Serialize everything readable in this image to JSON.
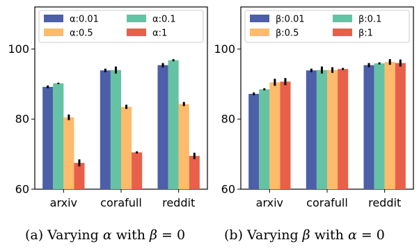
{
  "colors": [
    "#4c5fa8",
    "#66c2a4",
    "#fdbb6b",
    "#e8604a"
  ],
  "captions": {
    "left": {
      "prefix": "(a)  Varying ",
      "sym": "α",
      "mid": " with ",
      "sym2": "β",
      "suffix": " = 0"
    },
    "right": {
      "prefix": "(b)  Varying ",
      "sym": "β",
      "mid": " with ",
      "sym2": "α",
      "suffix": " = 0"
    }
  },
  "chart_data": [
    {
      "type": "bar",
      "categories": [
        "arxiv",
        "corafull",
        "reddit"
      ],
      "ylim": [
        60,
        112
      ],
      "yticks": [
        60,
        80,
        100
      ],
      "legend_position": "top",
      "grid": false,
      "series": [
        {
          "name": "α:0.01",
          "values": [
            89.2,
            93.9,
            95.4
          ],
          "errors": [
            0.4,
            0.5,
            0.6
          ]
        },
        {
          "name": "α:0.1",
          "values": [
            90.2,
            94.0,
            96.8
          ],
          "errors": [
            0.2,
            1.0,
            0.3
          ]
        },
        {
          "name": "α:0.5",
          "values": [
            80.5,
            83.5,
            84.3
          ],
          "errors": [
            0.8,
            0.6,
            0.6
          ]
        },
        {
          "name": "α:1",
          "values": [
            67.5,
            70.5,
            69.5
          ],
          "errors": [
            1.0,
            0.3,
            0.9
          ]
        }
      ]
    },
    {
      "type": "bar",
      "categories": [
        "arxiv",
        "corafull",
        "reddit"
      ],
      "ylim": [
        60,
        112
      ],
      "yticks": [
        60,
        80,
        100
      ],
      "legend_position": "top",
      "grid": false,
      "series": [
        {
          "name": "β:0.01",
          "values": [
            87.2,
            93.9,
            95.4
          ],
          "errors": [
            0.4,
            0.5,
            0.6
          ]
        },
        {
          "name": "β:0.1",
          "values": [
            88.5,
            94.0,
            95.9
          ],
          "errors": [
            0.3,
            1.0,
            0.3
          ]
        },
        {
          "name": "β:0.5",
          "values": [
            90.5,
            94.0,
            96.3
          ],
          "errors": [
            1.0,
            0.8,
            0.8
          ]
        },
        {
          "name": "β:1",
          "values": [
            90.7,
            94.3,
            96.0
          ],
          "errors": [
            1.0,
            0.3,
            1.0
          ]
        }
      ]
    }
  ]
}
